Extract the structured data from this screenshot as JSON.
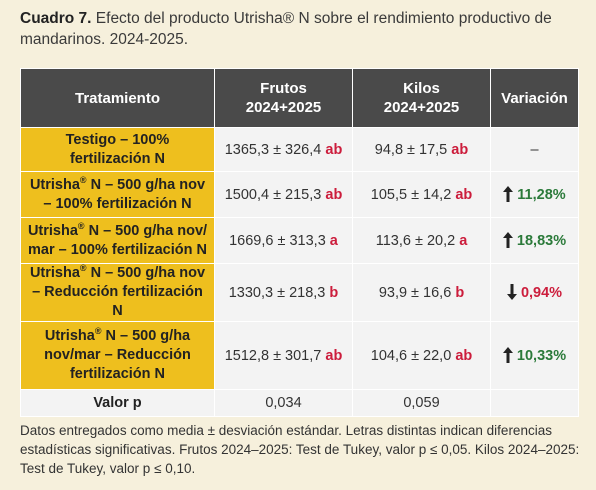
{
  "caption": {
    "label": "Cuadro 7.",
    "text": "Efecto del producto Utrisha® N sobre el rendimiento productivo de mandarinos. 2024-2025."
  },
  "table": {
    "headers": {
      "treatment": "Tratamiento",
      "fruits_line1": "Frutos",
      "fruits_line2": "2024+2025",
      "kilos_line1": "Kilos",
      "kilos_line2": "2024+2025",
      "variation": "Variación"
    },
    "rows": [
      {
        "treatment": "Testigo – 100% fertilización N",
        "fruits": "1365,3 ± 326,4",
        "fruits_letter": "ab",
        "kilos": "94,8 ± 17,5",
        "kilos_letter": "ab",
        "variation": "–",
        "trend": "none"
      },
      {
        "treatment": "Utrisha® N – 500 g/ha nov – 100% fertilización N",
        "fruits": "1500,4 ± 215,3",
        "fruits_letter": "ab",
        "kilos": "105,5 ± 14,2",
        "kilos_letter": "ab",
        "variation": "11,28%",
        "trend": "up"
      },
      {
        "treatment": "Utrisha® N – 500 g/ha nov/ mar – 100% fertilización N",
        "fruits": "1669,6 ± 313,3",
        "fruits_letter": "a",
        "kilos": "113,6 ± 20,2",
        "kilos_letter": "a",
        "variation": "18,83%",
        "trend": "up"
      },
      {
        "treatment": "Utrisha® N – 500 g/ha nov – Reducción fertilización N",
        "fruits": "1330,3 ± 218,3",
        "fruits_letter": "b",
        "kilos": "93,9 ± 16,6",
        "kilos_letter": "b",
        "variation": "0,94%",
        "trend": "down"
      },
      {
        "treatment": "Utrisha® N – 500 g/ha nov/mar – Reducción fertilización N",
        "fruits": "1512,8 ± 301,7",
        "fruits_letter": "ab",
        "kilos": "104,6 ± 22,0",
        "kilos_letter": "ab",
        "variation": "10,33%",
        "trend": "up"
      }
    ],
    "pvalue_row": {
      "label": "Valor p",
      "fruits": "0,034",
      "kilos": "0,059"
    }
  },
  "note": "Datos entregados como media ± desviación estándar. Letras distintas indican diferencias estadísticas significativas. Frutos 2024–2025: Test de Tukey, valor p ≤ 0,05. Kilos 2024–2025: Test de Tukey, valor p ≤ 0,10.",
  "colors": {
    "header_bg": "#4a4a4a",
    "treatment_bg": "#eebf1e",
    "cell_bg": "#f3f3f3",
    "letter": "#cc1d3c",
    "positive": "#2b7a3a",
    "negative": "#cc1d3c",
    "page_bg": "#f6f0dc"
  },
  "icons": {
    "up": "arrow-up-icon",
    "down": "arrow-down-icon"
  }
}
